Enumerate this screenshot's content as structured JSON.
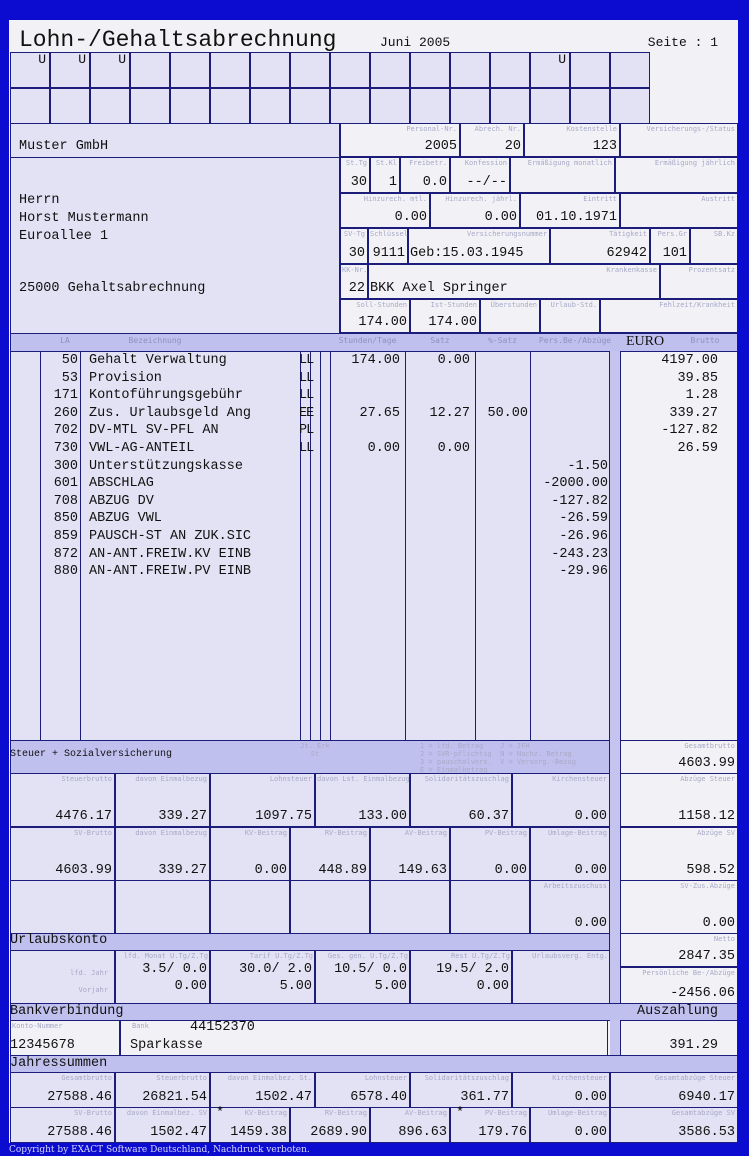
{
  "header": {
    "title": "Lohn-/Gehaltsabrechnung",
    "period": "Juni 2005",
    "page": "Seite : 1",
    "grid_marks": [
      "U",
      "U",
      "U",
      "",
      "",
      "",
      "",
      "",
      "",
      "",
      "",
      "",
      "",
      "U",
      "",
      ""
    ]
  },
  "employer": {
    "name": "Muster GmbH"
  },
  "address": {
    "salutation": "Herrn",
    "name": "Horst Mustermann",
    "street": "Euroallee 1",
    "city": "25000 Gehaltsabrechnung"
  },
  "info": {
    "personal_nr": {
      "label": "Personal-Nr.",
      "value": "2005"
    },
    "abrech_nr": {
      "label": "Abrech. Nr.",
      "value": "20"
    },
    "kostenstelle": {
      "label": "Kostenstelle",
      "value": "123"
    },
    "vers_status": {
      "label": "Versicherungs-/Status",
      "value": ""
    },
    "st_tg": {
      "label": "St.Tg",
      "value": "30"
    },
    "st_kl": {
      "label": "St.Kl",
      "value": "1"
    },
    "freibetrag": {
      "label": "Freibetr.",
      "value": "0.0"
    },
    "konfession": {
      "label": "Konfession",
      "value": "--/--"
    },
    "erm_monat": {
      "label": "Ermäßigung monatlich",
      "value": ""
    },
    "erm_jahr": {
      "label": "Ermäßigung jährlich",
      "value": ""
    },
    "hinzu_monat": {
      "label": "Hinzurech. mtl.",
      "value": "0.00"
    },
    "hinzu_jahr": {
      "label": "Hinzurech. jährl.",
      "value": "0.00"
    },
    "eintritt": {
      "label": "Eintritt",
      "value": "01.10.1971"
    },
    "austritt": {
      "label": "Austritt",
      "value": ""
    },
    "sv_tg": {
      "label": "SV-Tg",
      "value": "30"
    },
    "schluessel": {
      "label": "Schlüssel",
      "value": "9111"
    },
    "versnr": {
      "label": "Versicherungsnummer",
      "value": "Geb:15.03.1945"
    },
    "taetigkeit": {
      "label": "Tätigkeit",
      "value": "62942"
    },
    "persgr": {
      "label": "Pers.Gr",
      "value": "101"
    },
    "sbkz": {
      "label": "SB.Kz",
      "value": ""
    },
    "kk_nr": {
      "label": "KK-Nr.",
      "value": "22"
    },
    "krankenkasse": {
      "label": "Krankenkasse",
      "value": "BKK Axel Springer"
    },
    "prozentsatz": {
      "label": "Prozentsatz",
      "value": ""
    },
    "soll_std": {
      "label": "Soll-Stunden",
      "value": "174.00"
    },
    "ist_std": {
      "label": "Ist-Stunden",
      "value": "174.00"
    },
    "ueberstd": {
      "label": "Überstunden",
      "value": ""
    },
    "urlaub_std": {
      "label": "Urlaub-Std.",
      "value": ""
    },
    "fehlzeit": {
      "label": "Fehlzeit/Krankheit",
      "value": ""
    }
  },
  "items_header": {
    "la": "LA",
    "bez": "Bezeichnung",
    "std": "Stunden/Tage",
    "satz": "Satz",
    "psatz": "%-Satz",
    "abz": "Pers.Be-/Abzüge",
    "currency": "EURO",
    "brutto": "Brutto"
  },
  "items": [
    {
      "la": "50",
      "bez": "Gehalt Verwaltung",
      "typ": "LL",
      "std": "174.00",
      "satz": "0.00",
      "psatz": "",
      "abz": "",
      "brutto": "4197.00"
    },
    {
      "la": "53",
      "bez": "Provision",
      "typ": "LL",
      "std": "",
      "satz": "",
      "psatz": "",
      "abz": "",
      "brutto": "39.85"
    },
    {
      "la": "171",
      "bez": "Kontoführungsgebühr",
      "typ": "LL",
      "std": "",
      "satz": "",
      "psatz": "",
      "abz": "",
      "brutto": "1.28"
    },
    {
      "la": "260",
      "bez": "Zus. Urlaubsgeld Ang",
      "typ": "EE",
      "std": "27.65",
      "satz": "12.27",
      "psatz": "50.00",
      "abz": "",
      "brutto": "339.27"
    },
    {
      "la": "702",
      "bez": "DV-MTL SV-PFL AN",
      "typ": "PL",
      "std": "",
      "satz": "",
      "psatz": "",
      "abz": "",
      "brutto": "-127.82"
    },
    {
      "la": "730",
      "bez": "VWL-AG-ANTEIL",
      "typ": "LL",
      "std": "0.00",
      "satz": "0.00",
      "psatz": "",
      "abz": "",
      "brutto": "26.59"
    },
    {
      "la": "300",
      "bez": "Unterstützungskasse",
      "typ": "",
      "std": "",
      "satz": "",
      "psatz": "",
      "abz": "-1.50",
      "brutto": ""
    },
    {
      "la": "601",
      "bez": "ABSCHLAG",
      "typ": "",
      "std": "",
      "satz": "",
      "psatz": "",
      "abz": "-2000.00",
      "brutto": ""
    },
    {
      "la": "708",
      "bez": "ABZUG DV",
      "typ": "",
      "std": "",
      "satz": "",
      "psatz": "",
      "abz": "-127.82",
      "brutto": ""
    },
    {
      "la": "850",
      "bez": "ABZUG VWL",
      "typ": "",
      "std": "",
      "satz": "",
      "psatz": "",
      "abz": "-26.59",
      "brutto": ""
    },
    {
      "la": "859",
      "bez": "PAUSCH-ST AN ZUK.SIC",
      "typ": "",
      "std": "",
      "satz": "",
      "psatz": "",
      "abz": "-26.96",
      "brutto": ""
    },
    {
      "la": "872",
      "bez": "AN-ANT.FREIW.KV EINB",
      "typ": "",
      "std": "",
      "satz": "",
      "psatz": "",
      "abz": "-243.23",
      "brutto": ""
    },
    {
      "la": "880",
      "bez": "AN-ANT.FREIW.PV EINB",
      "typ": "",
      "std": "",
      "satz": "",
      "psatz": "",
      "abz": "-29.96",
      "brutto": ""
    }
  ],
  "steuer": {
    "title": "Steuer + Sozialversicherung",
    "jt_label": "Jt. Erk\nSt",
    "legend": "1 = lfd. Betrag    J = JFH\n2 = SVR-pflichtig  N = Nachz. Betrag\n3 = pauschalvers.  V = Versorg.-Bezug\nE = Einmalbetrag",
    "gesamtbrutto": {
      "label": "Gesamtbrutto",
      "value": "4603.99"
    },
    "row1": [
      {
        "label": "Steuerbrutto",
        "value": "4476.17"
      },
      {
        "label": "davon Einmalbezug",
        "value": "339.27"
      },
      {
        "label": "Lohnsteuer",
        "value": "1097.75"
      },
      {
        "label": "davon Lst. Einmalbezug",
        "value": "133.00"
      },
      {
        "label": "Solidaritätszuschlag",
        "value": "60.37"
      },
      {
        "label": "Kirchensteuer",
        "value": "0.00"
      }
    ],
    "abzuege_steuer": {
      "label": "Abzüge Steuer",
      "value": "1158.12"
    },
    "row2": [
      {
        "label": "SV-Brutto",
        "value": "4603.99"
      },
      {
        "label": "davon Einmalbezug",
        "value": "339.27"
      },
      {
        "label": "KV-Beitrag",
        "value": "0.00"
      },
      {
        "label": "RV-Beitrag",
        "value": "448.89"
      },
      {
        "label": "AV-Beitrag",
        "value": "149.63"
      },
      {
        "label": "PV-Beitrag",
        "value": "0.00"
      },
      {
        "label": "Umlage-Beitrag",
        "value": "0.00"
      }
    ],
    "abzuege_sv": {
      "label": "Abzüge SV",
      "value": "598.52"
    },
    "arbeitszuschuss": {
      "label": "Arbeitszuschuss",
      "value": "0.00"
    },
    "sv_zus_abzuege": {
      "label": "SV-Zus.Abzüge",
      "value": "0.00"
    }
  },
  "urlaub": {
    "title": "Urlaubskonto",
    "row_labels": [
      "lfd. Jahr",
      "Vorjahr"
    ],
    "cols": [
      {
        "label": "lfd. Monat U.Tg/Z.Tg",
        "cur": "3.5/ 0.0",
        "prev": "0.00"
      },
      {
        "label": "Tarif U.Tg/Z.Tg",
        "cur": "30.0/ 2.0",
        "prev": "5.00"
      },
      {
        "label": "Ges. gen. U.Tg/Z.Tg",
        "cur": "10.5/ 0.0",
        "prev": "5.00"
      },
      {
        "label": "Rest U.Tg/Z.Tg",
        "cur": "19.5/ 2.0",
        "prev": "0.00"
      },
      {
        "label": "Urlaubsverg. Entg.",
        "cur": "",
        "prev": ""
      }
    ],
    "netto": {
      "label": "Netto",
      "value": "2847.35"
    },
    "pers_abzuege": {
      "label": "Persönliche Be-/Abzüge",
      "value": "-2456.06"
    }
  },
  "bank": {
    "title": "Bankverbindung",
    "payout_title": "Auszahlung",
    "konto_label": "Konto-Nummer",
    "konto": "12345678",
    "bank_label": "Bank",
    "blz": "44152370",
    "bank_name": "Sparkasse",
    "payout": "391.29"
  },
  "jahr": {
    "title": "Jahressummen",
    "row1": [
      {
        "label": "Gesamtbrutto",
        "value": "27588.46",
        "star": ""
      },
      {
        "label": "Steuerbrutto",
        "value": "26821.54",
        "star": ""
      },
      {
        "label": "davon Einmalbez. St.",
        "value": "1502.47",
        "star": ""
      },
      {
        "label": "Lohnsteuer",
        "value": "6578.40",
        "star": ""
      },
      {
        "label": "Solidaritätszuschlag",
        "value": "361.77",
        "star": ""
      },
      {
        "label": "Kirchensteuer",
        "value": "0.00",
        "star": ""
      },
      {
        "label": "Gesamtabzüge Steuer",
        "value": "6940.17",
        "star": ""
      }
    ],
    "row2": [
      {
        "label": "SV-Brutto",
        "value": "27588.46",
        "star": ""
      },
      {
        "label": "davon Einmalbez. SV",
        "value": "1502.47",
        "star": ""
      },
      {
        "label": "KV-Beitrag",
        "value": "1459.38",
        "star": "*"
      },
      {
        "label": "RV-Beitrag",
        "value": "2689.90",
        "star": ""
      },
      {
        "label": "AV-Beitrag",
        "value": "896.63",
        "star": ""
      },
      {
        "label": "PV-Beitrag",
        "value": "179.76",
        "star": "*"
      },
      {
        "label": "Umlage-Beitrag",
        "value": "0.00",
        "star": ""
      },
      {
        "label": "Gesamtabzüge SV",
        "value": "3586.53",
        "star": ""
      }
    ]
  },
  "footer": {
    "copyright": "Copyright by EXACT Software Deutschland, Nachdruck verboten."
  },
  "colors": {
    "frame": "#0c0cd0",
    "band": "#c0c0ee",
    "cell": "#e2e2f4",
    "paper": "#f2f2f6",
    "rule": "#1c1c7a"
  }
}
